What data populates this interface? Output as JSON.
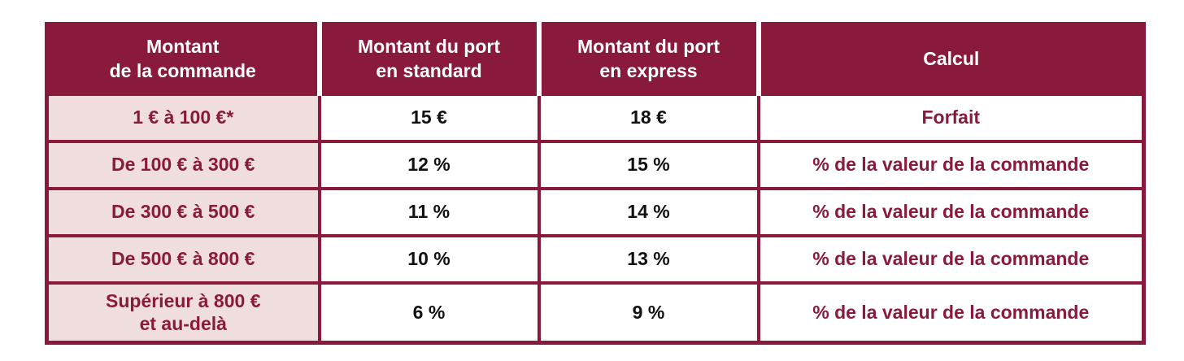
{
  "table": {
    "colors": {
      "header_background": "#8A1A3B",
      "border": "#8A1A3B",
      "first_column_background": "#F0DEDE",
      "header_text": "#FFFFFF",
      "accent_text": "#8A1A3B",
      "value_text": "#111111"
    },
    "headers": {
      "amount": "Montant\nde la commande",
      "standard": "Montant du port\nen standard",
      "express": "Montant du port\nen express",
      "calcul": "Calcul"
    },
    "rows": [
      {
        "amount": "1 € à 100 €*",
        "standard": "15 €",
        "express": "18 €",
        "calcul": "Forfait"
      },
      {
        "amount": "De 100 € à 300 €",
        "standard": "12 %",
        "express": "15 %",
        "calcul": "% de la valeur de la commande"
      },
      {
        "amount": "De 300 € à 500 €",
        "standard": "11 %",
        "express": "14 %",
        "calcul": "% de la valeur de la commande"
      },
      {
        "amount": "De 500 € à 800 €",
        "standard": "10 %",
        "express": "13 %",
        "calcul": "% de la valeur de la commande"
      },
      {
        "amount": "Supérieur à 800 €\net au-delà",
        "standard": "6 %",
        "express": "9 %",
        "calcul": "% de la valeur de la commande"
      }
    ]
  }
}
